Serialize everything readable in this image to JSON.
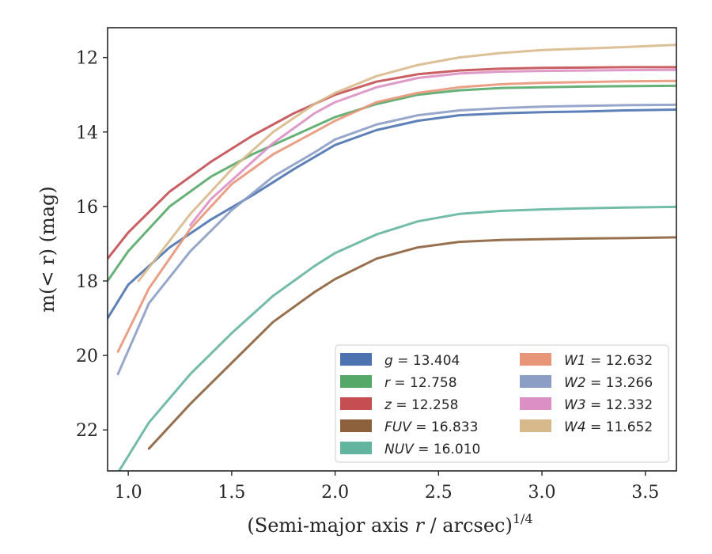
{
  "chart_data": {
    "type": "line",
    "xlabel": "(Semi-major axis r / arcsec)",
    "xlabel_italic_part": "r",
    "xlabel_sup": "1/4",
    "ylabel": "m(< r) (mag)",
    "xlim": [
      0.9,
      3.65
    ],
    "ylim": [
      23.1,
      11.2
    ],
    "y_inverted": true,
    "xticks": [
      "1.0",
      "1.5",
      "2.0",
      "2.5",
      "3.0",
      "3.5"
    ],
    "yticks": [
      "12",
      "14",
      "16",
      "18",
      "20",
      "22"
    ],
    "grid": false,
    "legend_position": "lower-right",
    "series": [
      {
        "name": "g = 13.404",
        "var": "g",
        "val": "13.404",
        "color": "#4c72b0",
        "x": [
          0.9,
          1.0,
          1.2,
          1.4,
          1.6,
          1.8,
          2.0,
          2.2,
          2.4,
          2.6,
          2.8,
          3.0,
          3.2,
          3.4,
          3.65
        ],
        "y": [
          19.0,
          18.1,
          17.1,
          16.35,
          15.7,
          15.0,
          14.35,
          13.95,
          13.7,
          13.55,
          13.5,
          13.47,
          13.45,
          13.42,
          13.4
        ]
      },
      {
        "name": "r = 12.758",
        "var": "r",
        "val": "12.758",
        "color": "#55a868",
        "x": [
          0.9,
          1.0,
          1.2,
          1.4,
          1.6,
          1.8,
          2.0,
          2.2,
          2.4,
          2.6,
          2.8,
          3.0,
          3.2,
          3.4,
          3.65
        ],
        "y": [
          18.0,
          17.2,
          16.0,
          15.2,
          14.6,
          14.1,
          13.6,
          13.25,
          13.0,
          12.88,
          12.82,
          12.8,
          12.78,
          12.77,
          12.76
        ]
      },
      {
        "name": "z = 12.258",
        "var": "z",
        "val": "12.258",
        "color": "#c44e52",
        "x": [
          0.9,
          1.0,
          1.2,
          1.4,
          1.6,
          1.8,
          2.0,
          2.2,
          2.4,
          2.6,
          2.8,
          3.0,
          3.2,
          3.4,
          3.65
        ],
        "y": [
          17.4,
          16.7,
          15.6,
          14.8,
          14.1,
          13.5,
          13.0,
          12.65,
          12.45,
          12.35,
          12.3,
          12.28,
          12.27,
          12.26,
          12.26
        ]
      },
      {
        "name": "FUV = 16.833",
        "var": "FUV",
        "val": "16.833",
        "color": "#8c613c",
        "x": [
          1.1,
          1.3,
          1.5,
          1.7,
          1.9,
          2.0,
          2.2,
          2.4,
          2.6,
          2.8,
          3.0,
          3.2,
          3.4,
          3.65
        ],
        "y": [
          22.5,
          21.3,
          20.2,
          19.1,
          18.3,
          17.95,
          17.4,
          17.1,
          16.95,
          16.9,
          16.88,
          16.86,
          16.85,
          16.83
        ]
      },
      {
        "name": "NUV = 16.010",
        "var": "NUV",
        "val": "16.010",
        "color": "#64b5a0",
        "x": [
          0.9,
          1.1,
          1.3,
          1.5,
          1.7,
          1.9,
          2.0,
          2.2,
          2.4,
          2.6,
          2.8,
          3.0,
          3.2,
          3.4,
          3.65
        ],
        "y": [
          23.6,
          21.8,
          20.5,
          19.4,
          18.4,
          17.6,
          17.25,
          16.75,
          16.4,
          16.2,
          16.12,
          16.08,
          16.05,
          16.03,
          16.01
        ]
      },
      {
        "name": "W1 = 12.632",
        "var": "W1",
        "val": "12.632",
        "color": "#e8967a",
        "x": [
          0.95,
          1.1,
          1.3,
          1.5,
          1.7,
          1.9,
          2.0,
          2.2,
          2.4,
          2.6,
          2.8,
          3.0,
          3.2,
          3.4,
          3.65
        ],
        "y": [
          19.9,
          18.2,
          16.6,
          15.4,
          14.6,
          14.0,
          13.7,
          13.2,
          12.95,
          12.8,
          12.72,
          12.68,
          12.66,
          12.64,
          12.63
        ]
      },
      {
        "name": "W2 = 13.266",
        "var": "W2",
        "val": "13.266",
        "color": "#8c9dc6",
        "x": [
          0.95,
          1.1,
          1.3,
          1.5,
          1.7,
          1.9,
          2.0,
          2.2,
          2.4,
          2.6,
          2.8,
          3.0,
          3.2,
          3.4,
          3.65
        ],
        "y": [
          20.5,
          18.6,
          17.2,
          16.1,
          15.2,
          14.55,
          14.2,
          13.8,
          13.55,
          13.42,
          13.36,
          13.32,
          13.3,
          13.28,
          13.27
        ]
      },
      {
        "name": "W3 = 12.332",
        "var": "W3",
        "val": "12.332",
        "color": "#dc8fc4",
        "x": [
          1.3,
          1.4,
          1.5,
          1.7,
          1.9,
          2.0,
          2.2,
          2.4,
          2.6,
          2.8,
          3.0,
          3.2,
          3.4,
          3.65
        ],
        "y": [
          16.5,
          15.8,
          15.3,
          14.3,
          13.5,
          13.2,
          12.8,
          12.55,
          12.43,
          12.38,
          12.36,
          12.35,
          12.34,
          12.33
        ]
      },
      {
        "name": "W4 = 11.652",
        "var": "W4",
        "val": "11.652",
        "color": "#d8b98c",
        "x": [
          1.05,
          1.3,
          1.5,
          1.7,
          1.9,
          2.0,
          2.2,
          2.4,
          2.6,
          2.8,
          3.0,
          3.2,
          3.4,
          3.65
        ],
        "y": [
          18.0,
          16.2,
          15.0,
          14.0,
          13.25,
          12.95,
          12.5,
          12.2,
          12.0,
          11.88,
          11.8,
          11.76,
          11.72,
          11.66
        ]
      }
    ],
    "legend_columns": [
      [
        "g = 13.404",
        "r = 12.758",
        "z = 12.258",
        "FUV = 16.833",
        "NUV = 16.010"
      ],
      [
        "W1 = 12.632",
        "W2 = 13.266",
        "W3 = 12.332",
        "W4 = 11.652"
      ]
    ]
  }
}
